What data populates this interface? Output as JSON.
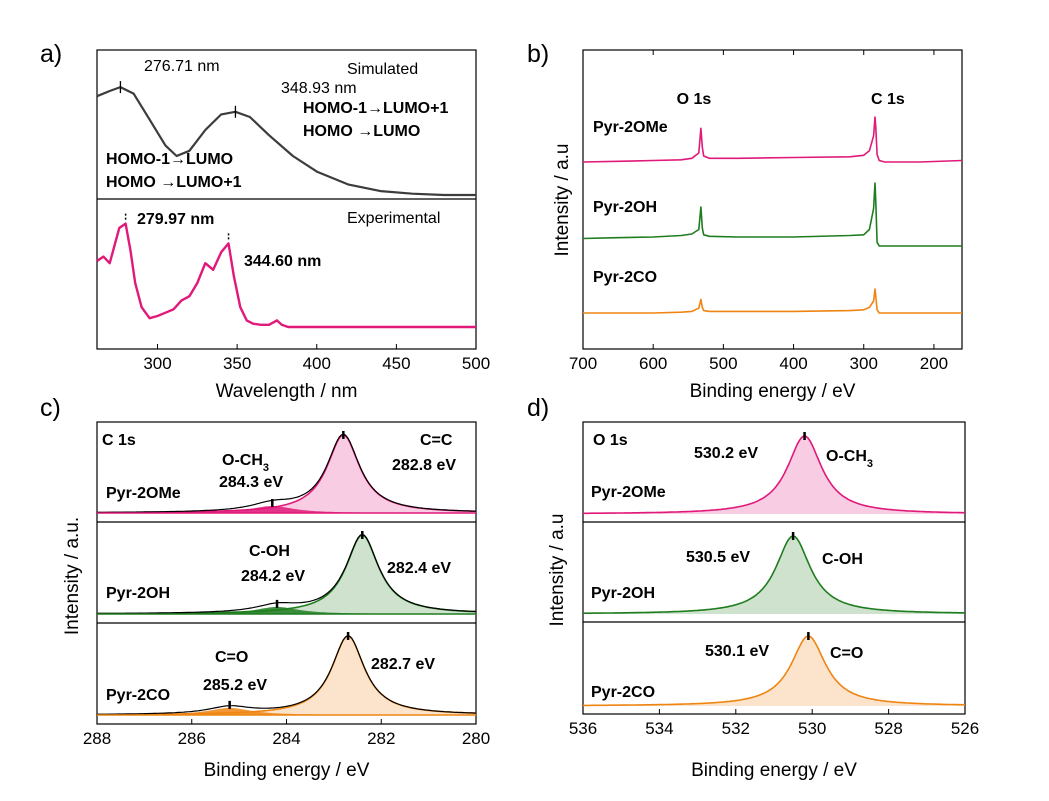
{
  "colors": {
    "pink": "#e0197a",
    "green": "#1f7d1f",
    "orange": "#ee8512",
    "gray": "#3c3c3c"
  },
  "chart_data": [
    {
      "type": "line",
      "panel_label": "a)",
      "xlabel": "Wavelength / nm",
      "xlim": [
        262,
        500
      ],
      "xticks": [
        "300",
        "350",
        "400",
        "450",
        "500"
      ],
      "subplots": [
        {
          "name": "Simulated",
          "label": "Simulated",
          "series": [
            {
              "color": "gray",
              "x": [
                262,
                270,
                276.71,
                285,
                295,
                305,
                312,
                320,
                330,
                340,
                348.93,
                358,
                370,
                385,
                400,
                420,
                440,
                460,
                480,
                500
              ],
              "y": [
                0.76,
                0.8,
                0.83,
                0.78,
                0.58,
                0.38,
                0.3,
                0.34,
                0.5,
                0.62,
                0.64,
                0.6,
                0.46,
                0.3,
                0.18,
                0.08,
                0.03,
                0.01,
                0.0,
                0.0
              ]
            }
          ],
          "peaks": [
            {
              "x": 276.71,
              "label": "276.71 nm"
            },
            {
              "x": 348.93,
              "label": "348.93 nm"
            }
          ],
          "transitions": [
            {
              "line1": "HOMO-1→LUMO+1",
              "line2": "HOMO    →LUMO"
            },
            {
              "line1": "HOMO-1→LUMO",
              "line2": "HOMO    →LUMO+1"
            }
          ]
        },
        {
          "name": "Experimental",
          "label": "Experimental",
          "series": [
            {
              "color": "pink",
              "x": [
                262,
                266,
                270,
                273,
                276,
                279.97,
                283,
                286,
                290,
                295,
                300,
                305,
                310,
                315,
                320,
                325,
                330,
                335,
                340,
                344.6,
                348,
                352,
                356,
                360,
                365,
                370,
                375,
                378,
                382,
                390,
                400,
                420,
                450,
                500
              ],
              "y": [
                0.6,
                0.64,
                0.58,
                0.74,
                0.9,
                0.94,
                0.7,
                0.4,
                0.18,
                0.08,
                0.1,
                0.13,
                0.16,
                0.24,
                0.28,
                0.4,
                0.58,
                0.52,
                0.68,
                0.76,
                0.46,
                0.18,
                0.06,
                0.03,
                0.02,
                0.02,
                0.06,
                0.02,
                0.0,
                0.0,
                0.0,
                0.0,
                0.0,
                0.0
              ]
            }
          ],
          "peaks": [
            {
              "x": 279.97,
              "label": "279.97 nm"
            },
            {
              "x": 344.6,
              "label": "344.60 nm"
            }
          ]
        }
      ]
    },
    {
      "type": "line",
      "panel_label": "b)",
      "xlabel": "Binding energy / eV",
      "ylabel": "Intensity / a.u",
      "xlim": [
        700,
        160
      ],
      "xticks": [
        "700",
        "600",
        "500",
        "400",
        "300",
        "200"
      ],
      "peak_labels": [
        {
          "x": 531,
          "label": "O 1s"
        },
        {
          "x": 284,
          "label": "C 1s"
        }
      ],
      "series": [
        {
          "name": "Pyr-2OMe",
          "color": "pink",
          "offset": 2.0,
          "x": [
            700,
            650,
            600,
            560,
            545,
            535,
            532,
            530,
            528,
            520,
            480,
            400,
            320,
            300,
            292,
            286,
            284,
            283,
            281,
            278,
            270,
            220,
            160
          ],
          "y": [
            0.0,
            0.01,
            0.02,
            0.03,
            0.05,
            0.12,
            0.45,
            0.2,
            0.08,
            0.05,
            0.05,
            0.06,
            0.07,
            0.09,
            0.15,
            0.35,
            0.6,
            0.48,
            0.1,
            0.02,
            0.0,
            0.0,
            0.02
          ]
        },
        {
          "name": "Pyr-2OH",
          "color": "green",
          "offset": 1.0,
          "x": [
            700,
            660,
            600,
            560,
            545,
            535,
            532,
            530,
            528,
            520,
            480,
            400,
            320,
            300,
            292,
            286,
            284,
            283,
            281,
            278,
            270,
            220,
            160
          ],
          "y": [
            0.1,
            0.11,
            0.12,
            0.14,
            0.16,
            0.22,
            0.52,
            0.24,
            0.15,
            0.13,
            0.12,
            0.12,
            0.14,
            0.15,
            0.22,
            0.5,
            0.84,
            0.62,
            0.05,
            0.0,
            0.0,
            0.0,
            0.0
          ]
        },
        {
          "name": "Pyr-2CO",
          "color": "orange",
          "offset": 0.0,
          "x": [
            700,
            650,
            600,
            560,
            545,
            535,
            532,
            530,
            528,
            520,
            480,
            400,
            320,
            300,
            292,
            286,
            284,
            283,
            281,
            278,
            270,
            220,
            160
          ],
          "y": [
            0.0,
            0.0,
            0.0,
            0.01,
            0.02,
            0.06,
            0.17,
            0.07,
            0.03,
            0.02,
            0.02,
            0.02,
            0.03,
            0.04,
            0.07,
            0.15,
            0.3,
            0.22,
            0.04,
            0.0,
            0.0,
            0.0,
            0.0
          ]
        }
      ]
    },
    {
      "type": "line",
      "panel_label": "c)",
      "xlabel": "Binding energy / eV",
      "ylabel": "Intensity / a.u.",
      "xlim": [
        288,
        280
      ],
      "xticks": [
        "288",
        "286",
        "284",
        "282",
        "280"
      ],
      "corner_label": "C 1s",
      "corner_label_right": "C=C",
      "series": [
        {
          "name": "Pyr-2OMe",
          "color": "pink",
          "main": {
            "center": 282.8,
            "label": "282.8 eV"
          },
          "minor": {
            "center": 284.3,
            "label": "284.3 eV",
            "group": "O-CH",
            "group_sub": "3"
          }
        },
        {
          "name": "Pyr-2OH",
          "color": "green",
          "main": {
            "center": 282.4,
            "label": "282.4 eV"
          },
          "minor": {
            "center": 284.2,
            "label": "284.2 eV",
            "group": "C-OH",
            "group_sub": ""
          }
        },
        {
          "name": "Pyr-2CO",
          "color": "orange",
          "main": {
            "center": 282.7,
            "label": "282.7 eV"
          },
          "minor": {
            "center": 285.2,
            "label": "285.2 eV",
            "group": "C=O",
            "group_sub": ""
          }
        }
      ]
    },
    {
      "type": "line",
      "panel_label": "d)",
      "xlabel": "Binding energy / eV",
      "ylabel": "Intensity / a.u",
      "xlim": [
        536,
        526
      ],
      "xticks": [
        "536",
        "534",
        "532",
        "530",
        "528",
        "526"
      ],
      "corner_label": "O 1s",
      "series": [
        {
          "name": "Pyr-2OMe",
          "color": "pink",
          "center": 530.2,
          "label": "530.2 eV",
          "group": "O-CH",
          "group_sub": "3"
        },
        {
          "name": "Pyr-2OH",
          "color": "green",
          "center": 530.5,
          "label": "530.5 eV",
          "group": "C-OH",
          "group_sub": ""
        },
        {
          "name": "Pyr-2CO",
          "color": "orange",
          "center": 530.1,
          "label": "530.1 eV",
          "group": "C=O",
          "group_sub": ""
        }
      ]
    }
  ]
}
